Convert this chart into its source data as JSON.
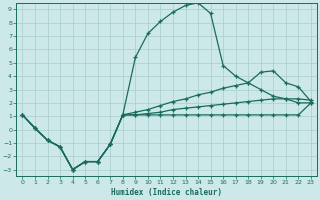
{
  "xlabel": "Humidex (Indice chaleur)",
  "background_color": "#cce8e8",
  "grid_color": "#a8cccc",
  "line_color": "#1a6b5e",
  "xlim": [
    -0.5,
    23.5
  ],
  "ylim": [
    -3.5,
    9.5
  ],
  "xticks": [
    0,
    1,
    2,
    3,
    4,
    5,
    6,
    7,
    8,
    9,
    10,
    11,
    12,
    13,
    14,
    15,
    16,
    17,
    18,
    19,
    20,
    21,
    22,
    23
  ],
  "yticks": [
    -3,
    -2,
    -1,
    0,
    1,
    2,
    3,
    4,
    5,
    6,
    7,
    8,
    9
  ],
  "curve_zigzag_x": [
    0,
    1,
    2,
    3,
    4,
    5,
    6,
    7,
    8,
    9,
    10,
    11,
    12,
    13,
    14,
    15,
    16,
    17,
    18,
    19,
    20,
    21,
    22,
    23
  ],
  "curve_zigzag_y": [
    1.1,
    0.1,
    -0.8,
    -1.3,
    -3.0,
    -2.4,
    -2.4,
    -1.1,
    1.1,
    1.1,
    1.1,
    1.1,
    1.1,
    1.1,
    1.1,
    1.1,
    1.1,
    1.1,
    1.1,
    1.1,
    1.1,
    1.1,
    1.1,
    2.0
  ],
  "curve_bell_x": [
    0,
    1,
    2,
    3,
    4,
    5,
    6,
    7,
    8,
    9,
    10,
    11,
    12,
    13,
    14,
    15,
    16,
    17,
    18,
    19,
    20,
    21,
    22,
    23
  ],
  "curve_bell_y": [
    1.1,
    0.1,
    -0.8,
    -1.3,
    -3.0,
    -2.4,
    -2.4,
    -1.1,
    1.1,
    5.4,
    7.2,
    8.1,
    8.8,
    9.3,
    9.5,
    8.7,
    4.8,
    4.0,
    3.5,
    3.0,
    2.5,
    2.3,
    2.0,
    2.0
  ],
  "curve_linear1_x": [
    0,
    1,
    2,
    3,
    4,
    5,
    6,
    7,
    8,
    9,
    10,
    11,
    12,
    13,
    14,
    15,
    16,
    17,
    18,
    19,
    20,
    21,
    22,
    23
  ],
  "curve_linear1_y": [
    1.1,
    0.1,
    -0.8,
    -1.3,
    -3.0,
    -2.4,
    -2.4,
    -1.1,
    1.1,
    1.3,
    1.5,
    1.8,
    2.1,
    2.3,
    2.6,
    2.8,
    3.1,
    3.3,
    3.5,
    4.3,
    4.4,
    3.5,
    3.2,
    2.1
  ],
  "curve_linear2_x": [
    0,
    1,
    2,
    3,
    4,
    5,
    6,
    7,
    8,
    9,
    10,
    11,
    12,
    13,
    14,
    15,
    16,
    17,
    18,
    19,
    20,
    21,
    22,
    23
  ],
  "curve_linear2_y": [
    1.1,
    0.1,
    -0.8,
    -1.3,
    -3.0,
    -2.4,
    -2.4,
    -1.1,
    1.1,
    1.1,
    1.2,
    1.3,
    1.5,
    1.6,
    1.7,
    1.8,
    1.9,
    2.0,
    2.1,
    2.2,
    2.3,
    2.3,
    2.3,
    2.2
  ]
}
